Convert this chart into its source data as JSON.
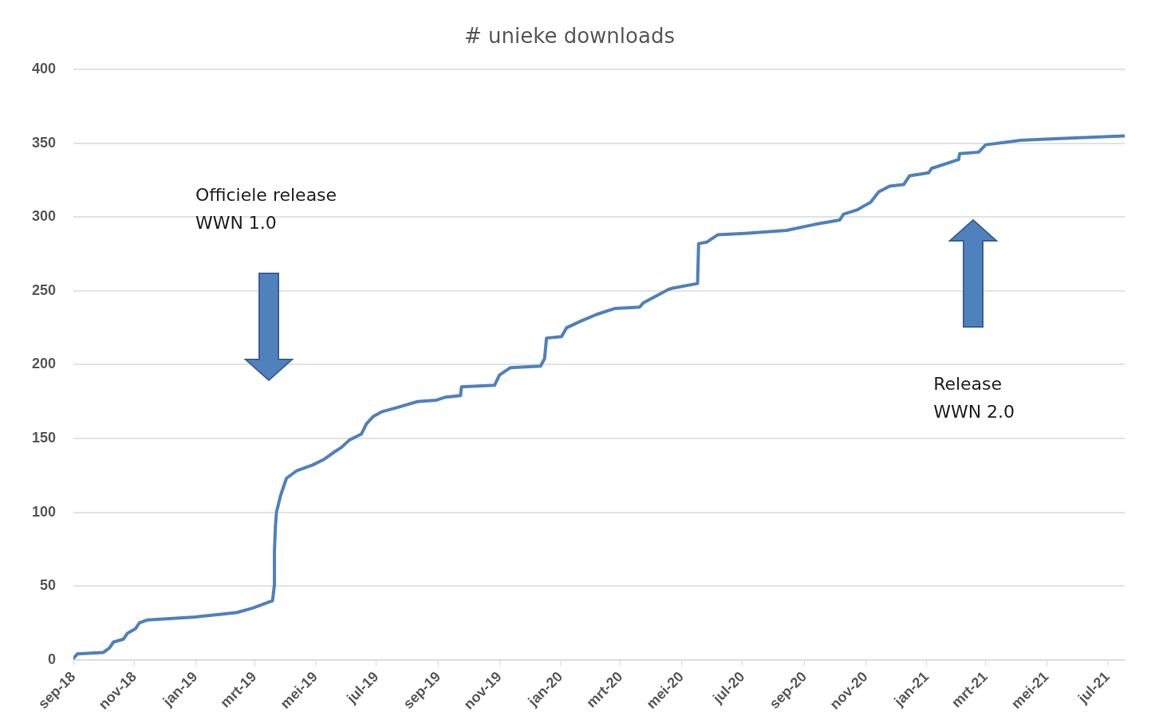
{
  "chart_data": {
    "type": "line",
    "title": "# unieke downloads",
    "x": [
      "2018-09-01",
      "2018-09-05",
      "2018-10-01",
      "2018-10-07",
      "2018-10-11",
      "2018-10-21",
      "2018-10-25",
      "2018-11-02",
      "2018-11-06",
      "2018-11-14",
      "2019-01-01",
      "2019-02-11",
      "2019-02-27",
      "2019-03-19",
      "2019-03-21",
      "2019-03-21",
      "2019-03-22",
      "2019-03-23",
      "2019-03-27",
      "2019-04-02",
      "2019-04-12",
      "2019-04-28",
      "2019-05-10",
      "2019-05-18",
      "2019-05-27",
      "2019-06-04",
      "2019-06-16",
      "2019-06-21",
      "2019-06-28",
      "2019-07-06",
      "2019-07-22",
      "2019-08-11",
      "2019-08-30",
      "2019-09-08",
      "2019-09-23",
      "2019-09-24",
      "2019-10-27",
      "2019-11-01",
      "2019-11-12",
      "2019-12-12",
      "2019-12-16",
      "2019-12-18",
      "2020-01-02",
      "2020-01-07",
      "2020-01-23",
      "2020-02-06",
      "2020-02-24",
      "2020-03-20",
      "2020-03-24",
      "2020-04-18",
      "2020-04-23",
      "2020-05-17",
      "2020-05-18",
      "2020-05-26",
      "2020-06-06",
      "2020-07-04",
      "2020-08-14",
      "2020-09-11",
      "2020-10-06",
      "2020-10-10",
      "2020-10-24",
      "2020-10-29",
      "2020-11-06",
      "2020-11-14",
      "2020-11-25",
      "2020-12-09",
      "2020-12-15",
      "2021-01-03",
      "2021-01-06",
      "2021-02-02",
      "2021-02-03",
      "2021-02-22",
      "2021-03-01",
      "2021-04-05",
      "2021-05-05",
      "2021-07-18"
    ],
    "series": [
      {
        "color": "#4f81bd",
        "values": [
          1,
          4,
          5,
          8,
          12,
          14,
          18,
          21,
          25,
          27,
          29,
          32,
          35,
          40,
          51,
          74,
          91,
          100,
          111,
          123,
          128,
          132,
          136,
          140,
          144,
          149,
          153,
          160,
          165,
          168,
          171,
          175,
          176,
          178,
          179,
          185,
          186,
          193,
          198,
          199,
          204,
          218,
          219,
          225,
          230,
          234,
          238,
          239,
          242,
          251,
          252,
          255,
          282,
          283,
          288,
          289,
          291,
          295,
          298,
          302,
          305,
          307,
          310,
          317,
          321,
          322,
          328,
          330,
          333,
          339,
          343,
          344,
          349,
          352,
          353,
          355
        ]
      }
    ],
    "xlim": [
      "2018-09-01",
      "2021-07-18"
    ],
    "xticks": [
      {
        "value": "2018-09-01",
        "label": "sep-18"
      },
      {
        "value": "2018-11-01",
        "label": "nov-18"
      },
      {
        "value": "2019-01-01",
        "label": "jan-19"
      },
      {
        "value": "2019-03-01",
        "label": "mrt-19"
      },
      {
        "value": "2019-05-01",
        "label": "mei-19"
      },
      {
        "value": "2019-07-01",
        "label": "jul-19"
      },
      {
        "value": "2019-09-01",
        "label": "sep-19"
      },
      {
        "value": "2019-11-01",
        "label": "nov-19"
      },
      {
        "value": "2020-01-01",
        "label": "jan-20"
      },
      {
        "value": "2020-03-01",
        "label": "mrt-20"
      },
      {
        "value": "2020-05-01",
        "label": "mei-20"
      },
      {
        "value": "2020-07-01",
        "label": "jul-20"
      },
      {
        "value": "2020-09-01",
        "label": "sep-20"
      },
      {
        "value": "2020-11-01",
        "label": "nov-20"
      },
      {
        "value": "2021-01-01",
        "label": "jan-21"
      },
      {
        "value": "2021-03-01",
        "label": "mrt-21"
      },
      {
        "value": "2021-05-01",
        "label": "mei-21"
      },
      {
        "value": "2021-07-01",
        "label": "jul-21"
      }
    ],
    "ylim": [
      0,
      400
    ],
    "yticks": [
      0,
      50,
      100,
      150,
      200,
      250,
      300,
      350,
      400
    ],
    "grid": "y",
    "legend": false,
    "marker": "none",
    "line_style": "solid",
    "annotations": [
      "Officiele release\nWWN 1.0",
      "Release\nWWN 2.0"
    ]
  }
}
